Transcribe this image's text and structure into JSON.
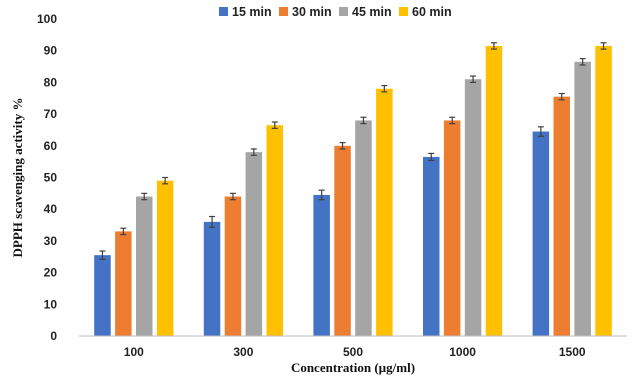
{
  "chart_data": {
    "type": "bar",
    "title": "",
    "xlabel": "Concentration (µg/ml)",
    "ylabel": "DPPH scavenging activity %",
    "categories": [
      "100",
      "300",
      "500",
      "1000",
      "1500"
    ],
    "ylim": [
      0,
      100
    ],
    "yticks": [
      "0",
      "10",
      "20",
      "30",
      "40",
      "50",
      "60",
      "70",
      "80",
      "90",
      "100"
    ],
    "grid": false,
    "legend_position": "top",
    "series": [
      {
        "name": "15 min",
        "color": "#4472C4",
        "values": [
          25.5,
          36,
          44.5,
          56.5,
          64.5
        ],
        "errors": [
          1.3,
          1.7,
          1.5,
          1.1,
          1.5
        ]
      },
      {
        "name": "30 min",
        "color": "#ED7D31",
        "values": [
          33,
          44,
          60,
          68,
          75.5
        ],
        "errors": [
          1.0,
          1.0,
          1.0,
          1.0,
          1.0
        ]
      },
      {
        "name": "45 min",
        "color": "#A5A5A5",
        "values": [
          44,
          58,
          68,
          81,
          86.5
        ],
        "errors": [
          1.0,
          1.0,
          1.0,
          1.0,
          1.0
        ]
      },
      {
        "name": "60 min",
        "color": "#FFC000",
        "values": [
          49,
          66.5,
          78,
          91.5,
          91.5
        ],
        "errors": [
          1.0,
          1.0,
          1.0,
          1.0,
          1.0
        ]
      }
    ]
  }
}
